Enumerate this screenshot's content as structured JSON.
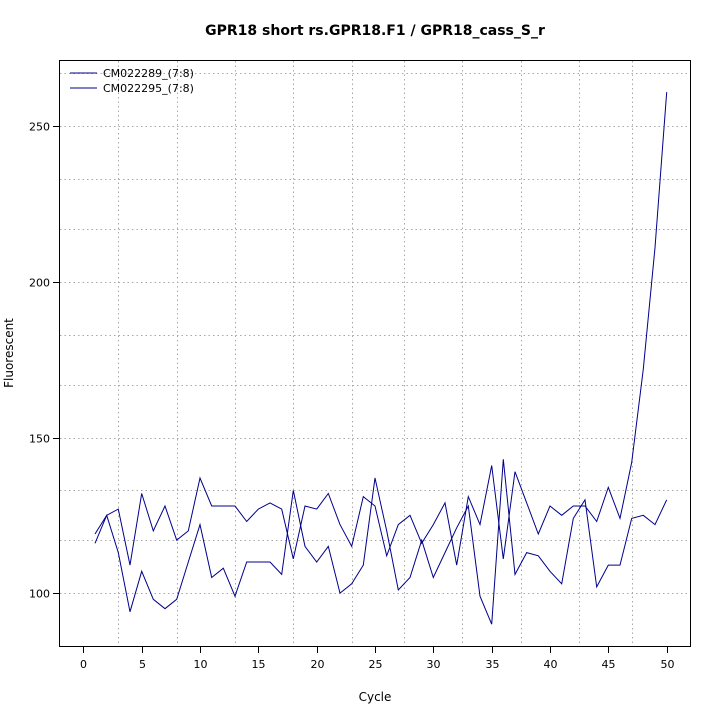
{
  "chart_data": {
    "type": "line",
    "title": "GPR18 short rs.GPR18.F1 / GPR18_cass_S_r",
    "xlabel": "Cycle",
    "ylabel": "Fluorescent",
    "xlim": [
      -2,
      52
    ],
    "ylim": [
      83,
      271
    ],
    "x_ticks": [
      0,
      5,
      10,
      15,
      20,
      25,
      30,
      35,
      40,
      45,
      50
    ],
    "y_ticks": [
      100,
      150,
      200,
      250
    ],
    "x_grid": [
      3,
      8,
      13,
      18,
      23,
      27.5,
      32.5,
      37.5,
      42.5,
      47
    ],
    "y_grid": [
      100,
      117,
      133,
      150,
      167,
      183,
      200,
      217,
      233,
      250,
      267
    ],
    "grid": true,
    "legend_position": "top-left",
    "x": [
      1,
      2,
      3,
      4,
      5,
      6,
      7,
      8,
      9,
      10,
      11,
      12,
      13,
      14,
      15,
      16,
      17,
      18,
      19,
      20,
      21,
      22,
      23,
      24,
      25,
      26,
      27,
      28,
      29,
      30,
      31,
      32,
      33,
      34,
      35,
      36,
      37,
      38,
      39,
      40,
      41,
      42,
      43,
      44,
      45,
      46,
      47,
      48,
      49,
      50
    ],
    "series": [
      {
        "name": "CM022289_(7:8)",
        "color": "#00008b",
        "values": [
          116,
          125,
          127,
          109,
          132,
          120,
          128,
          117,
          120,
          137,
          128,
          128,
          128,
          123,
          127,
          129,
          127,
          111,
          128,
          127,
          132,
          122,
          115,
          131,
          128,
          112,
          122,
          125,
          116,
          122,
          129,
          109,
          131,
          122,
          141,
          111,
          139,
          129,
          119,
          128,
          125,
          128,
          128,
          123,
          134,
          124,
          142,
          172,
          211,
          261
        ]
      },
      {
        "name": "CM022295_(7:8)",
        "color": "#00008b",
        "values": [
          119,
          125,
          113,
          94,
          107,
          98,
          95,
          98,
          110,
          122,
          105,
          108,
          99,
          110,
          110,
          110,
          106,
          133,
          115,
          110,
          115,
          100,
          103,
          109,
          137,
          120,
          101,
          105,
          117,
          105,
          113,
          121,
          128,
          99,
          90,
          143,
          106,
          113,
          112,
          107,
          103,
          124,
          130,
          102,
          109,
          109,
          124,
          125,
          122,
          130
        ]
      }
    ]
  }
}
